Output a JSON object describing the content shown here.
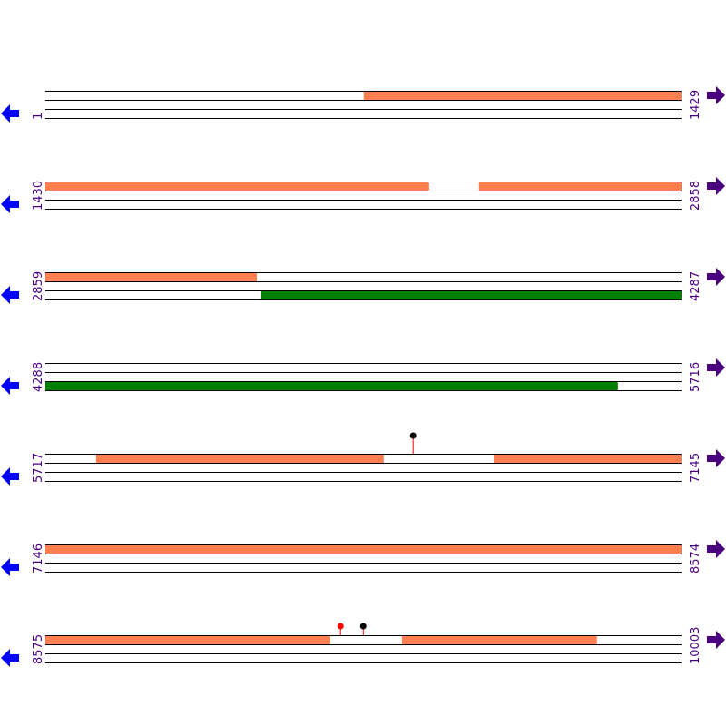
{
  "colors": {
    "cds": "#ff7f50",
    "gene": "#008000",
    "line": "#000000",
    "label": "#4b0082",
    "left_arrow": "#0000ff",
    "right_arrow": "#4b0082",
    "marker_red": "#ff0000",
    "marker_black": "#000000"
  },
  "rows": [
    {
      "start": "1",
      "end": "1429",
      "s": 1,
      "e": 1429,
      "features": [
        {
          "strand": 0,
          "from": 716,
          "to": 1429,
          "color": "#ff7f50"
        }
      ],
      "markers": []
    },
    {
      "start": "1430",
      "end": "2858",
      "s": 1430,
      "e": 2858,
      "features": [
        {
          "strand": 0,
          "from": 1430,
          "to": 2292,
          "color": "#ff7f50"
        },
        {
          "strand": 0,
          "from": 2404,
          "to": 2858,
          "color": "#ff7f50"
        }
      ],
      "markers": []
    },
    {
      "start": "2859",
      "end": "4287",
      "s": 2859,
      "e": 4287,
      "features": [
        {
          "strand": 0,
          "from": 2859,
          "to": 3334,
          "color": "#ff7f50"
        },
        {
          "strand": 2,
          "from": 3344,
          "to": 4287,
          "color": "#008000"
        }
      ],
      "markers": []
    },
    {
      "start": "4288",
      "end": "5716",
      "s": 4288,
      "e": 5716,
      "features": [
        {
          "strand": 2,
          "from": 4288,
          "to": 5574,
          "color": "#008000"
        }
      ],
      "markers": []
    },
    {
      "start": "5717",
      "end": "7145",
      "s": 5717,
      "e": 7145,
      "features": [
        {
          "strand": 0,
          "from": 5831,
          "to": 6477,
          "color": "#ff7f50"
        },
        {
          "strand": 0,
          "from": 6724,
          "to": 7145,
          "color": "#ff7f50"
        }
      ],
      "markers": [
        {
          "pos": 6543,
          "color": "#000000",
          "tall": true
        }
      ]
    },
    {
      "start": "7146",
      "end": "8574",
      "s": 7146,
      "e": 8574,
      "features": [
        {
          "strand": 0,
          "from": 7146,
          "to": 8574,
          "color": "#ff7f50"
        }
      ],
      "markers": []
    },
    {
      "start": "8575",
      "end": "10003",
      "s": 8575,
      "e": 10003,
      "features": [
        {
          "strand": 0,
          "from": 8575,
          "to": 9215,
          "color": "#ff7f50"
        },
        {
          "strand": 0,
          "from": 9376,
          "to": 9814,
          "color": "#ff7f50"
        }
      ],
      "markers": [
        {
          "pos": 9238,
          "color": "#ff0000",
          "tall": false
        },
        {
          "pos": 9289,
          "color": "#000000",
          "tall": false
        }
      ]
    }
  ]
}
